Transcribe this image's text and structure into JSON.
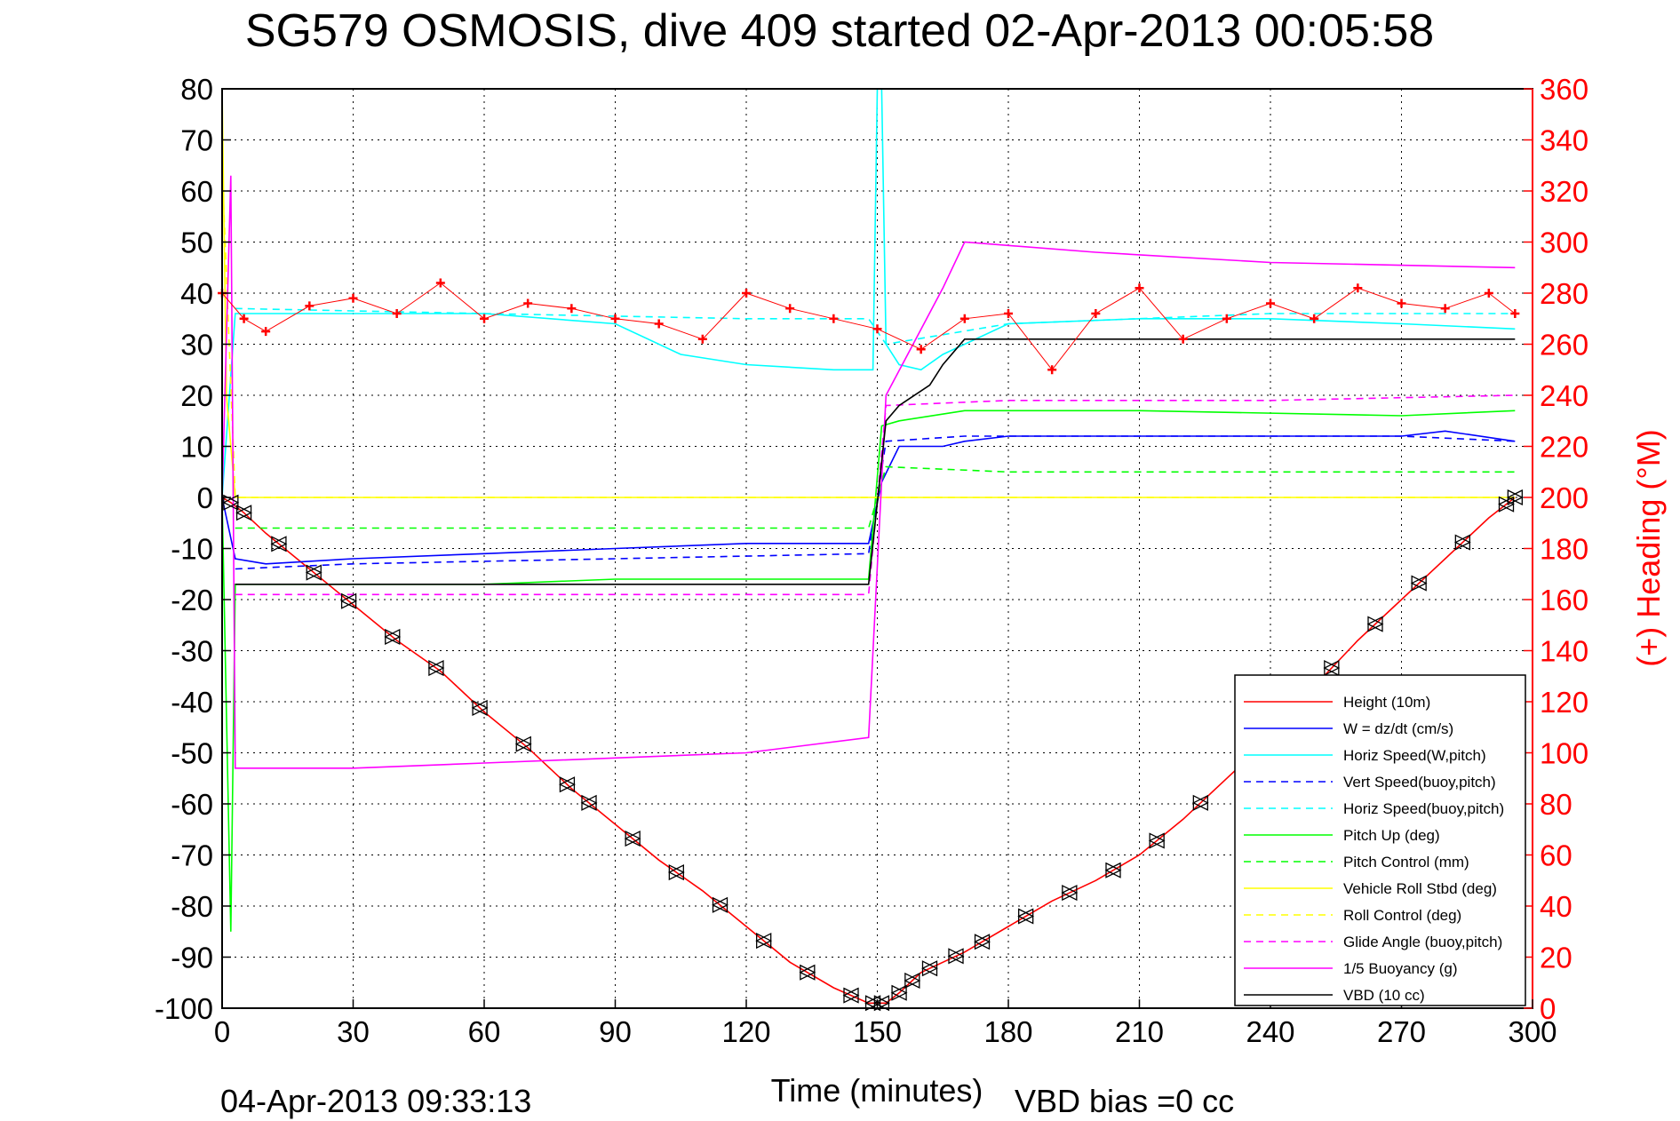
{
  "colors": {
    "height": "#ff0000",
    "w": "#0000ff",
    "horiz_speed": "#00ffff",
    "vert_speed_buoy": "#0000ff",
    "horiz_speed_buoy": "#00ffff",
    "pitch_up": "#00ff00",
    "pitch_control": "#00ff00",
    "roll": "#ffff00",
    "roll_control": "#ffff00",
    "glide_angle": "#ff00ff",
    "buoyancy": "#ff00ff",
    "vbd": "#000000",
    "heading": "#ff0000"
  },
  "chart_data": {
    "type": "line",
    "title": "SG579 OSMOSIS, dive 409 started 02-Apr-2013 00:05:58",
    "xlabel": "Time (minutes)",
    "ylabel_right": "(+) Heading (°M)",
    "xlim": [
      0,
      300
    ],
    "ylim": [
      -100,
      80
    ],
    "ylim_right": [
      0,
      360
    ],
    "xticks": [
      "0",
      "30",
      "60",
      "90",
      "120",
      "150",
      "180",
      "210",
      "240",
      "270",
      "300"
    ],
    "yticks": [
      "80",
      "70",
      "60",
      "50",
      "40",
      "30",
      "20",
      "10",
      "0",
      "-10",
      "-20",
      "-30",
      "-40",
      "-50",
      "-60",
      "-70",
      "-80",
      "-90",
      "-100"
    ],
    "yticks_right": [
      "360",
      "340",
      "320",
      "300",
      "280",
      "260",
      "240",
      "220",
      "200",
      "180",
      "160",
      "140",
      "120",
      "100",
      "80",
      "60",
      "40",
      "20",
      "0"
    ],
    "grid": true,
    "legend_position": "bottom-right",
    "footer_left": "04-Apr-2013 09:33:13",
    "footer_right": "VBD bias =0 cc",
    "series": [
      {
        "name": "Height (10m)",
        "key": "height",
        "style": "solid",
        "x": [
          0,
          2,
          5,
          10,
          20,
          30,
          40,
          50,
          60,
          70,
          80,
          90,
          100,
          110,
          120,
          130,
          140,
          148,
          152,
          155,
          160,
          170,
          180,
          190,
          200,
          210,
          220,
          230,
          240,
          250,
          260,
          270,
          280,
          290,
          296
        ],
        "y": [
          0,
          -1,
          -3,
          -7,
          -14,
          -21,
          -28,
          -34,
          -42,
          -49,
          -57,
          -64,
          -71,
          -77,
          -84,
          -91,
          -96,
          -99,
          -99,
          -97,
          -93,
          -89,
          -84,
          -79,
          -75,
          -70,
          -63,
          -55,
          -47,
          -37,
          -28,
          -20,
          -12,
          -4,
          0
        ]
      },
      {
        "name": "W = dz/dt (cm/s)",
        "key": "w",
        "style": "solid",
        "x": [
          0,
          3,
          10,
          30,
          60,
          90,
          120,
          148,
          151,
          155,
          165,
          170,
          180,
          210,
          240,
          270,
          280,
          296
        ],
        "y": [
          0,
          -12,
          -13,
          -12,
          -11,
          -10,
          -9,
          -9,
          3,
          10,
          10,
          11,
          12,
          12,
          12,
          12,
          13,
          11
        ]
      },
      {
        "name": "Horiz Speed(W,pitch)",
        "key": "horiz_speed",
        "style": "solid",
        "x": [
          0,
          3,
          10,
          30,
          60,
          90,
          105,
          120,
          140,
          149,
          150,
          151,
          152,
          155,
          160,
          165,
          180,
          210,
          240,
          270,
          296
        ],
        "y": [
          0,
          36,
          36,
          36,
          36,
          34,
          28,
          26,
          25,
          25,
          80,
          80,
          30,
          26,
          25,
          28,
          34,
          35,
          35,
          34,
          33
        ]
      },
      {
        "name": "Vert Speed(buoy,pitch)",
        "key": "vert_speed_buoy",
        "style": "dashed",
        "x": [
          3,
          30,
          90,
          148,
          152,
          170,
          210,
          270,
          296
        ],
        "y": [
          -14,
          -13,
          -12,
          -11,
          11,
          12,
          12,
          12,
          11
        ]
      },
      {
        "name": "Horiz Speed(buoy,pitch)",
        "key": "horiz_speed_buoy",
        "style": "dashed",
        "x": [
          3,
          60,
          120,
          148,
          152,
          180,
          240,
          296
        ],
        "y": [
          37,
          36,
          35,
          35,
          30,
          34,
          36,
          36
        ]
      },
      {
        "name": "Pitch Up (deg)",
        "key": "pitch_up",
        "style": "solid",
        "x": [
          0,
          2,
          3,
          10,
          60,
          90,
          120,
          148,
          151,
          155,
          170,
          210,
          270,
          296
        ],
        "y": [
          0,
          -85,
          -17,
          -17,
          -17,
          -16,
          -16,
          -16,
          14,
          15,
          17,
          17,
          16,
          17
        ]
      },
      {
        "name": "Pitch Control (mm)",
        "key": "pitch_control",
        "style": "dashed",
        "x": [
          3,
          60,
          148,
          152,
          180,
          240,
          296
        ],
        "y": [
          -6,
          -6,
          -6,
          6,
          5,
          5,
          5
        ]
      },
      {
        "name": "Vehicle Roll Stbd (deg)",
        "key": "roll",
        "style": "solid",
        "x": [
          0,
          1,
          3,
          10,
          60,
          150,
          200,
          250,
          296
        ],
        "y": [
          80,
          20,
          0,
          0,
          0,
          0,
          0,
          0,
          0
        ]
      },
      {
        "name": "Roll Control (deg)",
        "key": "roll_control",
        "style": "dashed",
        "x": [
          0,
          3,
          60,
          150,
          200,
          296
        ],
        "y": [
          65,
          0,
          0,
          0,
          0,
          0
        ]
      },
      {
        "name": "Glide Angle (buoy,pitch)",
        "key": "glide_angle",
        "style": "dashed",
        "x": [
          3,
          60,
          120,
          148,
          152,
          180,
          240,
          296
        ],
        "y": [
          -19,
          -19,
          -19,
          -19,
          18,
          19,
          19,
          20
        ]
      },
      {
        "name": "1/5 Buoyancy (g)",
        "key": "buoyancy",
        "style": "solid",
        "x": [
          0,
          2,
          3,
          30,
          60,
          90,
          120,
          148,
          152,
          165,
          170,
          200,
          240,
          296
        ],
        "y": [
          0,
          63,
          -53,
          -53,
          -52,
          -51,
          -50,
          -47,
          20,
          41,
          50,
          48,
          46,
          45
        ]
      },
      {
        "name": "VBD (10 cc)",
        "key": "vbd",
        "style": "solid",
        "x": [
          3,
          10,
          60,
          148,
          152,
          155,
          162,
          165,
          170,
          200,
          296
        ],
        "y": [
          -17,
          -17,
          -17,
          -17,
          15,
          18,
          22,
          26,
          31,
          31,
          31
        ]
      },
      {
        "name": "Heading",
        "key": "heading",
        "style": "markers",
        "axis": "right",
        "x": [
          0,
          5,
          10,
          20,
          30,
          40,
          50,
          60,
          70,
          80,
          90,
          100,
          110,
          120,
          130,
          140,
          150,
          160,
          170,
          180,
          190,
          200,
          210,
          220,
          230,
          240,
          250,
          260,
          270,
          280,
          290,
          296
        ],
        "y": [
          280,
          270,
          265,
          275,
          278,
          272,
          284,
          270,
          276,
          274,
          270,
          268,
          262,
          280,
          274,
          270,
          266,
          258,
          270,
          272,
          250,
          272,
          282,
          262,
          270,
          276,
          270,
          282,
          276,
          274,
          280,
          272
        ]
      }
    ],
    "event_markers": {
      "x": [
        2,
        5,
        13,
        21,
        29,
        39,
        49,
        59,
        69,
        79,
        84,
        94,
        104,
        114,
        124,
        134,
        144,
        149,
        151,
        155,
        158,
        162,
        168,
        174,
        184,
        194,
        204,
        214,
        224,
        234,
        244,
        254,
        264,
        274,
        284,
        294,
        296
      ]
    }
  }
}
